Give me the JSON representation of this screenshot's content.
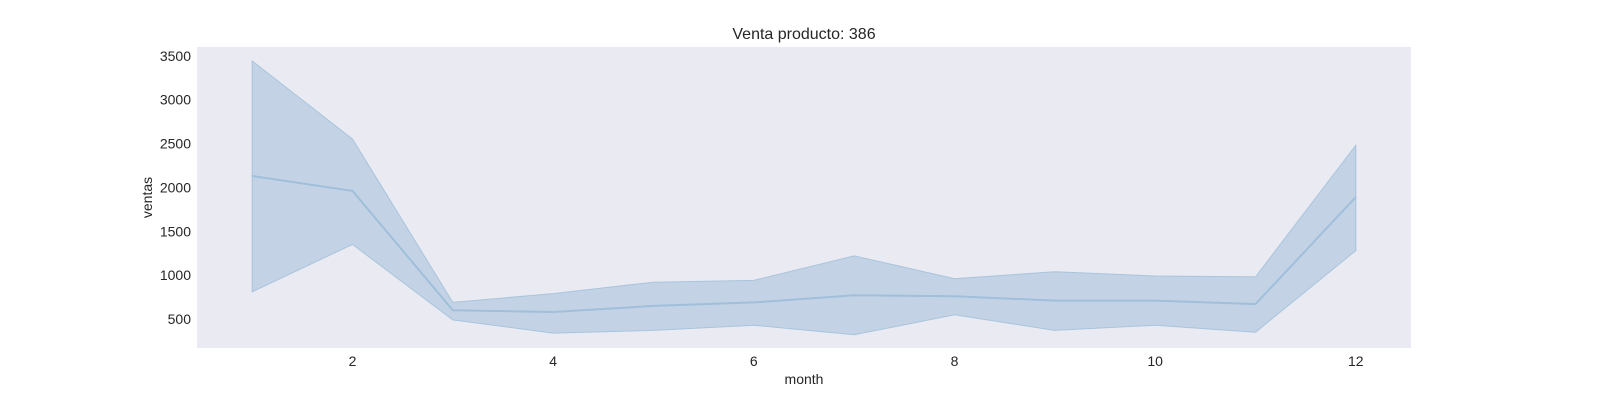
{
  "chart_data": {
    "type": "line",
    "title": "Venta producto: 386",
    "xlabel": "month",
    "ylabel": "ventas",
    "x": [
      1,
      2,
      3,
      4,
      5,
      6,
      7,
      8,
      9,
      10,
      11,
      12
    ],
    "series": [
      {
        "values": [
          2130,
          1960,
          600,
          580,
          650,
          690,
          770,
          760,
          710,
          710,
          670,
          1890
        ],
        "lower": [
          810,
          1350,
          490,
          340,
          370,
          430,
          320,
          550,
          370,
          430,
          350,
          1280
        ],
        "upper": [
          3440,
          2550,
          690,
          790,
          920,
          940,
          1220,
          960,
          1040,
          990,
          980,
          2480
        ]
      }
    ],
    "xticks": [
      2,
      4,
      6,
      8,
      10,
      12
    ],
    "yticks": [
      500,
      1000,
      1500,
      2000,
      2500,
      3000,
      3500
    ],
    "xlim": [
      0.45,
      12.55
    ],
    "ylim": [
      170,
      3600
    ],
    "grid": false,
    "colors": {
      "plot_background": "#eaeaf2",
      "line": "#a0bfda",
      "band": "#c3d3e5",
      "band_edge": "#a9c4dd"
    }
  }
}
